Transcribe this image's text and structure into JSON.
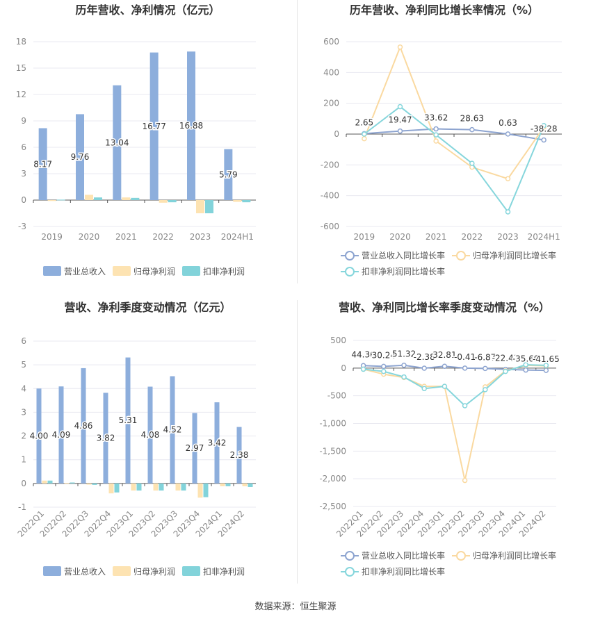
{
  "colors": {
    "revenue": "#8DAEDC",
    "parent_profit": "#FDE3B2",
    "deducted_profit": "#82D3DA",
    "revenue_line": "#8DA4D0",
    "parent_line": "#FAD9A0",
    "deducted_line": "#86D6DC",
    "grid": "#E8E8F0",
    "axis_text": "#888888",
    "title_text": "#333333",
    "label_text": "#333333"
  },
  "chart_data": [
    {
      "id": "annual-amount",
      "type": "bar",
      "title": "历年营收、净利情况（亿元）",
      "categories": [
        "2019",
        "2020",
        "2021",
        "2022",
        "2023",
        "2024H1"
      ],
      "ylim": [
        -3,
        18
      ],
      "yticks": [
        -3,
        0,
        3,
        6,
        9,
        12,
        15,
        18
      ],
      "series": [
        {
          "name": "营业总收入",
          "values": [
            8.17,
            9.76,
            13.04,
            16.77,
            16.88,
            5.79
          ],
          "labels": [
            "8.17",
            "9.76",
            "13.04",
            "16.77",
            "16.88",
            "5.79"
          ]
        },
        {
          "name": "归母净利润",
          "values": [
            -0.1,
            0.6,
            0.3,
            -0.3,
            -1.5,
            -0.2
          ]
        },
        {
          "name": "扣非净利润",
          "values": [
            0.05,
            0.3,
            0.25,
            -0.25,
            -1.5,
            -0.25
          ]
        }
      ]
    },
    {
      "id": "annual-growth",
      "type": "line",
      "title": "历年营收、净利同比增长率情况（%）",
      "categories": [
        "2019",
        "2020",
        "2021",
        "2022",
        "2023",
        "2024H1"
      ],
      "ylim": [
        -600,
        600
      ],
      "yticks": [
        -600,
        -400,
        -200,
        0,
        200,
        400,
        600
      ],
      "series": [
        {
          "name": "营业总收入同比增长率",
          "values": [
            2.65,
            19.47,
            33.62,
            28.63,
            0.63,
            -38.28
          ],
          "labels": [
            "2.65",
            "19.47",
            "33.62",
            "28.63",
            "0.63",
            "-38.28"
          ]
        },
        {
          "name": "归母净利润同比增长率",
          "values": [
            -30,
            565,
            -45,
            -215,
            -290,
            45
          ]
        },
        {
          "name": "扣非净利润同比增长率",
          "values": [
            0,
            178,
            -5,
            -190,
            -505,
            55
          ]
        }
      ]
    },
    {
      "id": "quarterly-amount",
      "type": "bar",
      "title": "营收、净利季度变动情况（亿元）",
      "categories": [
        "2022Q1",
        "2022Q2",
        "2022Q3",
        "2022Q4",
        "2023Q1",
        "2023Q2",
        "2023Q3",
        "2023Q4",
        "2024Q1",
        "2024Q2"
      ],
      "ylim": [
        -1,
        6
      ],
      "yticks": [
        -1,
        0,
        1,
        2,
        3,
        4,
        5,
        6
      ],
      "series": [
        {
          "name": "营业总收入",
          "values": [
            4.0,
            4.09,
            4.86,
            3.82,
            5.31,
            4.08,
            4.52,
            2.97,
            3.42,
            2.38
          ],
          "labels": [
            "4.00",
            "4.09",
            "4.86",
            "3.82",
            "5.31",
            "4.08",
            "4.52",
            "2.97",
            "3.42",
            "2.38"
          ]
        },
        {
          "name": "归母净利润",
          "values": [
            0.12,
            0.02,
            -0.05,
            -0.42,
            -0.3,
            -0.3,
            -0.3,
            -0.6,
            -0.12,
            -0.12
          ]
        },
        {
          "name": "扣非净利润",
          "values": [
            0.12,
            0.04,
            -0.06,
            -0.38,
            -0.3,
            -0.3,
            -0.3,
            -0.58,
            -0.12,
            -0.15
          ]
        }
      ]
    },
    {
      "id": "quarterly-growth",
      "type": "line",
      "title": "营收、净利同比增长率季度变动情况（%）",
      "categories": [
        "2022Q1",
        "2022Q2",
        "2022Q3",
        "2022Q4",
        "2023Q1",
        "2023Q2",
        "2023Q3",
        "2023Q4",
        "2024Q1",
        "2024Q2"
      ],
      "ylim": [
        -2500,
        500
      ],
      "yticks": [
        -2500,
        -2000,
        -1500,
        -1000,
        -500,
        0,
        500
      ],
      "ytick_labels": [
        "-2,500",
        "-2,000",
        "-1,500",
        "-1,000",
        "-500",
        "0",
        "500"
      ],
      "series": [
        {
          "name": "营业总收入同比增长率",
          "values": [
            44.36,
            30.24,
            51.32,
            -2.38,
            32.81,
            -0.41,
            -6.87,
            -22.41,
            -35.69,
            -41.65
          ],
          "labels": [
            "44.36",
            "30.24",
            "51.32",
            "-2.38",
            "32.81",
            "-0.41",
            "-6.87",
            "-22.41",
            "-35.69",
            "-41.65"
          ]
        },
        {
          "name": "归母净利润同比增长率",
          "values": [
            -20,
            -110,
            -170,
            -330,
            -330,
            -2030,
            -340,
            -50,
            50,
            40
          ]
        },
        {
          "name": "扣非净利润同比增长率",
          "values": [
            -20,
            -60,
            -160,
            -370,
            -330,
            -680,
            -390,
            -60,
            60,
            50
          ]
        }
      ]
    }
  ],
  "source": "数据来源：恒生聚源"
}
